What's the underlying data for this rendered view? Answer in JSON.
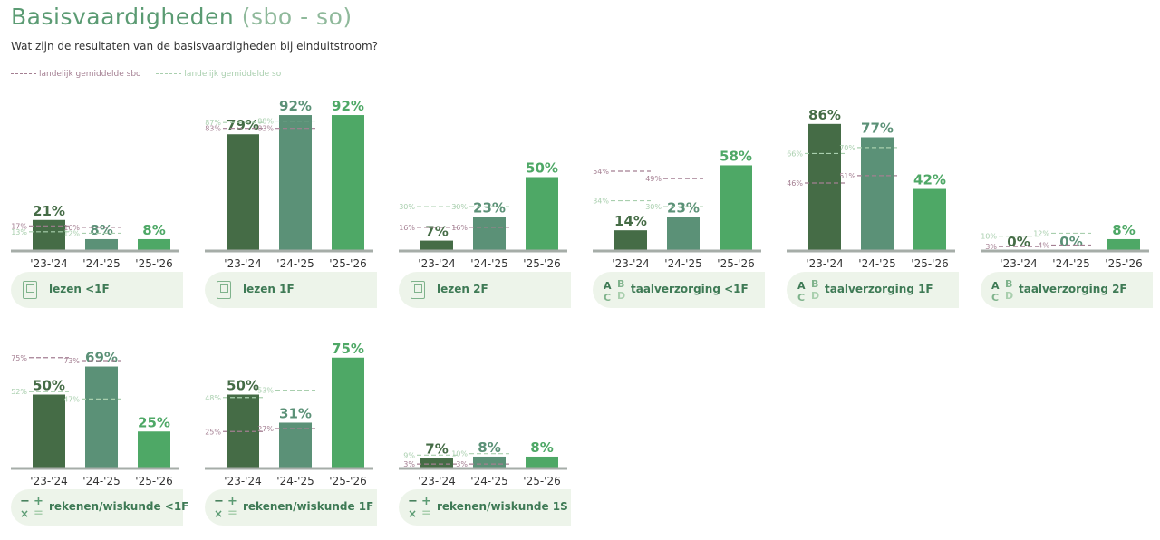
{
  "header": {
    "title": "Basisvaardigheden",
    "title_suffix": "(sbo - so)",
    "subtitle": "Wat zijn de resultaten van de basisvaardigheden bij einduitstroom?"
  },
  "legend": {
    "sbo": "landelijk gemiddelde sbo",
    "so": "landelijk gemiddelde so"
  },
  "colors": {
    "bar_2324": "#456c46",
    "bar_2425": "#5b9177",
    "bar_2526": "#4ea866",
    "sbo_line": "#a47f92",
    "so_line": "#a9cfae",
    "axis": "#a6ada8"
  },
  "chart_data": [
    {
      "type": "bar",
      "label": "lezen <1F",
      "icon": "book-icon",
      "categories": [
        "'23-'24",
        "'24-'25",
        "'25-'26"
      ],
      "value_labels": [
        "21%",
        "8%",
        "8%"
      ],
      "values": [
        21,
        8,
        8
      ],
      "sbo": [
        17,
        16,
        null
      ],
      "so": [
        13,
        12,
        null
      ],
      "ylim": [
        0,
        100
      ]
    },
    {
      "type": "bar",
      "label": "lezen 1F",
      "icon": "book-icon",
      "categories": [
        "'23-'24",
        "'24-'25",
        "'25-'26"
      ],
      "value_labels": [
        "79%",
        "92%",
        "92%"
      ],
      "values": [
        79,
        92,
        92
      ],
      "sbo": [
        83,
        83,
        null
      ],
      "so": [
        87,
        88,
        null
      ],
      "ylim": [
        0,
        100
      ]
    },
    {
      "type": "bar",
      "label": "lezen 2F",
      "icon": "book-icon",
      "categories": [
        "'23-'24",
        "'24-'25",
        "'25-'26"
      ],
      "value_labels": [
        "7%",
        "23%",
        "50%"
      ],
      "values": [
        7,
        23,
        50
      ],
      "sbo": [
        16,
        16,
        null
      ],
      "so": [
        30,
        30,
        null
      ],
      "ylim": [
        0,
        100
      ]
    },
    {
      "type": "bar",
      "label": "taalverzorging <1F",
      "icon": "abcd-icon",
      "categories": [
        "'23-'24",
        "'24-'25",
        "'25-'26"
      ],
      "value_labels": [
        "14%",
        "23%",
        "58%"
      ],
      "values": [
        14,
        23,
        58
      ],
      "sbo": [
        54,
        49,
        null
      ],
      "so": [
        34,
        30,
        null
      ],
      "ylim": [
        0,
        100
      ]
    },
    {
      "type": "bar",
      "label": "taalverzorging 1F",
      "icon": "abcd-icon",
      "categories": [
        "'23-'24",
        "'24-'25",
        "'25-'26"
      ],
      "value_labels": [
        "86%",
        "77%",
        "42%"
      ],
      "values": [
        86,
        77,
        42
      ],
      "sbo": [
        46,
        51,
        null
      ],
      "so": [
        66,
        70,
        null
      ],
      "ylim": [
        0,
        100
      ]
    },
    {
      "type": "bar",
      "label": "taalverzorging 2F",
      "icon": "abcd-icon",
      "categories": [
        "'23-'24",
        "'24-'25",
        "'25-'26"
      ],
      "value_labels": [
        "0%",
        "0%",
        "8%"
      ],
      "values": [
        0,
        0,
        8
      ],
      "sbo": [
        3,
        4,
        null
      ],
      "so": [
        10,
        12,
        null
      ],
      "ylim": [
        0,
        100
      ]
    },
    {
      "type": "bar",
      "label": "rekenen/wiskunde <1F",
      "icon": "math-icon",
      "categories": [
        "'23-'24",
        "'24-'25",
        "'25-'26"
      ],
      "value_labels": [
        "50%",
        "69%",
        "25%"
      ],
      "values": [
        50,
        69,
        25
      ],
      "sbo": [
        75,
        73,
        null
      ],
      "so": [
        52,
        47,
        null
      ],
      "ylim": [
        0,
        100
      ]
    },
    {
      "type": "bar",
      "label": "rekenen/wiskunde 1F",
      "icon": "math-icon",
      "categories": [
        "'23-'24",
        "'24-'25",
        "'25-'26"
      ],
      "value_labels": [
        "50%",
        "31%",
        "75%"
      ],
      "values": [
        50,
        31,
        75
      ],
      "sbo": [
        25,
        27,
        null
      ],
      "so": [
        48,
        53,
        null
      ],
      "ylim": [
        0,
        100
      ]
    },
    {
      "type": "bar",
      "label": "rekenen/wiskunde 1S",
      "icon": "math-icon",
      "categories": [
        "'23-'24",
        "'24-'25",
        "'25-'26"
      ],
      "value_labels": [
        "7%",
        "8%",
        "8%"
      ],
      "values": [
        7,
        8,
        8
      ],
      "sbo": [
        3,
        3,
        null
      ],
      "so": [
        9,
        10,
        null
      ],
      "ylim": [
        0,
        100
      ]
    }
  ]
}
